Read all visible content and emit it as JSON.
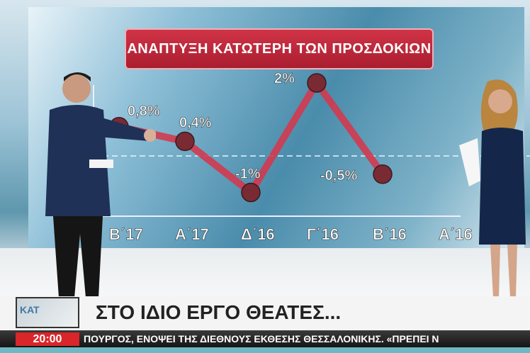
{
  "broadcast": {
    "headline": "ΣΤΟ ΙΔΙΟ ΕΡΓΟ ΘΕΑΤΕΣ...",
    "logo": "ΚΑΤ",
    "clock": "20:00",
    "ticker": "ΠΟΥΡΓΟΣ, ΕΝΟΨΕΙ ΤΗΣ ΔΙΕΘΝΟΥΣ ΕΚΘΕΣΗΣ ΘΕΣΣΑΛΟΝΙΚΗΣ. «ΠΡΕΠΕΙ Ν",
    "colors": {
      "title_bg": "#c0283b",
      "clock_bg": "#d8262a",
      "line": "#d23a4f",
      "marker": "#7a2a33"
    }
  },
  "chart_data": {
    "type": "line",
    "title": "ΑΝΑΠΤΥΞΗ ΚΑΤΩΤΕΡΗ ΤΩΝ ΠΡΟΣΔΟΚΙΩΝ",
    "categories": [
      "Β΄17",
      "Α΄17",
      "Δ΄16",
      "Γ΄16",
      "Β΄16",
      "Α΄16"
    ],
    "values": [
      0.8,
      0.4,
      -1,
      2,
      -0.5,
      null
    ],
    "data_labels": [
      "0,8%",
      "0,4%",
      "-1%",
      "2%",
      "-0,5%",
      ""
    ],
    "unit": "%",
    "zero_line": "dashed",
    "grid": false,
    "xlabel": "",
    "ylabel": ""
  }
}
